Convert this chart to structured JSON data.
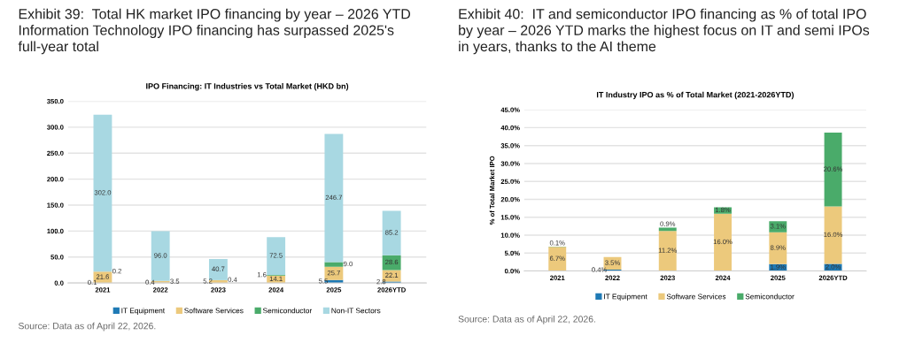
{
  "chart_data": [
    {
      "type": "bar",
      "stacked": true,
      "title": "Exhibit 39:  Total HK market IPO financing by year – 2026 YTD Information Technology IPO financing has surpassed 2025's full-year total",
      "subtitle": "IPO Financing: IT Industries vs Total Market (HKD bn)",
      "categories": [
        "2021",
        "2022",
        "2023",
        "2024",
        "2025",
        "2026YTD"
      ],
      "series": [
        {
          "name": "IT Equipment",
          "color": "#1f7ab5",
          "values": [
            0.1,
            0.4,
            null,
            null,
            5.5,
            2.8
          ],
          "value_labels": [
            "0.1",
            "0.4",
            null,
            null,
            "5.5",
            "2.8"
          ]
        },
        {
          "name": "Software Services",
          "color": "#ecc97c",
          "values": [
            21.6,
            3.5,
            5.2,
            14.1,
            25.7,
            22.1
          ],
          "value_labels": [
            "21.6",
            "3.5",
            "5.2",
            "14.1",
            "25.7",
            "22.1"
          ]
        },
        {
          "name": "Semiconductor",
          "color": "#4aab6a",
          "values": [
            0.2,
            null,
            0.4,
            1.6,
            9.0,
            28.6
          ],
          "value_labels": [
            "0.2",
            null,
            "0.4",
            "1.6",
            "9.0",
            "28.6"
          ]
        },
        {
          "name": "Non-IT Sectors",
          "color": "#a8d8e2",
          "values": [
            302.0,
            96.0,
            40.7,
            72.5,
            246.7,
            85.2
          ],
          "value_labels": [
            "302.0",
            "96.0",
            "40.7",
            "72.5",
            "246.7",
            "85.2"
          ]
        }
      ],
      "ylim": [
        0,
        350
      ],
      "yticks": [
        {
          "value": 0,
          "label": "0.0"
        },
        {
          "value": 50,
          "label": "50.0"
        },
        {
          "value": 100,
          "label": "100.0"
        },
        {
          "value": 150,
          "label": "150.0"
        },
        {
          "value": 200,
          "label": "200.0"
        },
        {
          "value": 250,
          "label": "250.0"
        },
        {
          "value": 300,
          "label": "300.0"
        },
        {
          "value": 350,
          "label": "350.0"
        }
      ],
      "grid": "y",
      "legend": "bottom",
      "annotations": [
        "Source: Data as of April 22, 2026."
      ]
    },
    {
      "type": "bar",
      "stacked": true,
      "title": "Exhibit 40:  IT and semiconductor IPO financing as % of total IPO by year – 2026 YTD marks the highest focus on IT and semi IPOs in years, thanks to the AI theme",
      "subtitle": "IT Industry IPO as % of Total Market (2021-2026YTD)",
      "ylabel": "% of Total Market IPO",
      "categories": [
        "2021",
        "2022",
        "2023",
        "2024",
        "2025",
        "2026YTD"
      ],
      "series": [
        {
          "name": "IT Equipment",
          "color": "#1f7ab5",
          "values": [
            null,
            0.4,
            null,
            null,
            1.9,
            2.0
          ],
          "value_labels": [
            null,
            "0.4%",
            null,
            null,
            "1.9%",
            "2.0%"
          ]
        },
        {
          "name": "Software Services",
          "color": "#ecc97c",
          "values": [
            6.7,
            3.5,
            11.2,
            16.0,
            8.9,
            16.0
          ],
          "value_labels": [
            "6.7%",
            "3.5%",
            "11.2%",
            "16.0%",
            "8.9%",
            "16.0%"
          ]
        },
        {
          "name": "Semiconductor",
          "color": "#4aab6a",
          "values": [
            0.1,
            null,
            0.9,
            1.8,
            3.1,
            20.6
          ],
          "value_labels": [
            "0.1%",
            null,
            "0.9%",
            "1.8%",
            "3.1%",
            "20.6%"
          ]
        }
      ],
      "ylim": [
        0,
        45
      ],
      "yticks": [
        {
          "value": 0,
          "label": "0.0%"
        },
        {
          "value": 5,
          "label": "5.0%"
        },
        {
          "value": 10,
          "label": "10.0%"
        },
        {
          "value": 15,
          "label": "15.0%"
        },
        {
          "value": 20,
          "label": "20.0%"
        },
        {
          "value": 25,
          "label": "25.0%"
        },
        {
          "value": 30,
          "label": "30.0%"
        },
        {
          "value": 35,
          "label": "35.0%"
        },
        {
          "value": 40,
          "label": "40.0%"
        },
        {
          "value": 45,
          "label": "45.0%"
        }
      ],
      "grid": "y",
      "legend": "bottom",
      "annotations": [
        "Source: Data as of April 22, 2026."
      ]
    }
  ]
}
